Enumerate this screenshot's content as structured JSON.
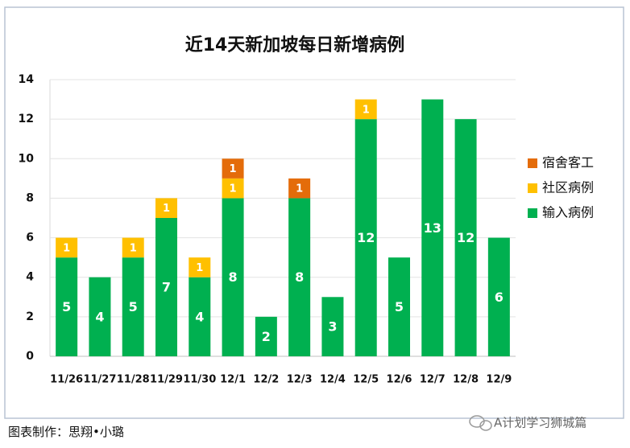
{
  "chart_data": {
    "type": "stacked_bar",
    "title": "近14天新加坡每日新增病例",
    "categories": [
      "11/26",
      "11/27",
      "11/28",
      "11/29",
      "11/30",
      "12/1",
      "12/2",
      "12/3",
      "12/4",
      "12/5",
      "12/6",
      "12/7",
      "12/8",
      "12/9"
    ],
    "series": [
      {
        "name": "输入病例",
        "color": "#00b050",
        "values": [
          5,
          4,
          5,
          7,
          4,
          8,
          2,
          8,
          3,
          12,
          5,
          13,
          12,
          6
        ]
      },
      {
        "name": "社区病例",
        "color": "#ffc000",
        "values": [
          1,
          null,
          1,
          1,
          1,
          1,
          null,
          null,
          null,
          1,
          null,
          null,
          null,
          null
        ]
      },
      {
        "name": "宿舍客工",
        "color": "#e46c0a",
        "values": [
          null,
          null,
          null,
          null,
          null,
          1,
          null,
          1,
          null,
          null,
          null,
          null,
          null,
          null
        ]
      }
    ],
    "ylim": [
      0,
      14
    ],
    "yticks": [
      0,
      2,
      4,
      6,
      8,
      10,
      12,
      14
    ],
    "grid": true,
    "legend": "right",
    "annotations": [
      "图表制作：思翔•小璐",
      "A计划学习狮城篇"
    ]
  }
}
